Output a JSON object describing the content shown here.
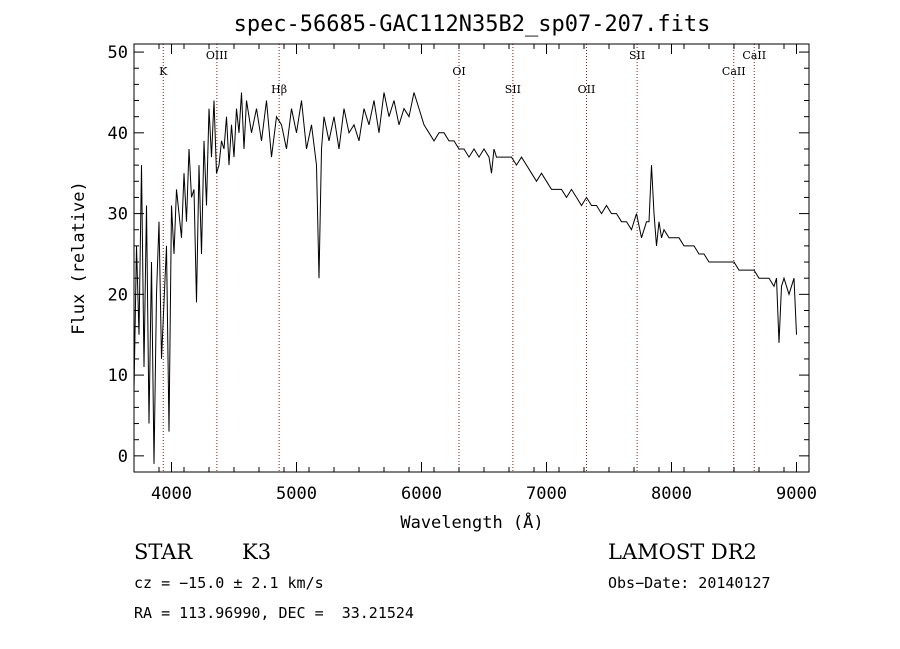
{
  "chart_data": {
    "type": "line",
    "title": "spec-56685-GAC112N35B2_sp07-207.fits",
    "xlabel": "Wavelength (Å)",
    "ylabel": "Flux (relative)",
    "xlim": [
      3700,
      9100
    ],
    "ylim": [
      -2,
      51
    ],
    "xticks": [
      4000,
      5000,
      6000,
      7000,
      8000,
      9000
    ],
    "yticks": [
      0,
      10,
      20,
      30,
      40,
      50
    ],
    "line_color": "#000000",
    "marker_color": "#8b1a1a",
    "spectral_lines": [
      {
        "label": "K",
        "wavelength": 3934
      },
      {
        "label": "OIII",
        "wavelength": 4363
      },
      {
        "label": "Hβ",
        "wavelength": 4861
      },
      {
        "label": "OI",
        "wavelength": 6300
      },
      {
        "label": "SII",
        "wavelength": 6731
      },
      {
        "label": "OII",
        "wavelength": 7320
      },
      {
        "label": "SII",
        "wavelength": 7725
      },
      {
        "label": "CaII",
        "wavelength": 8498
      },
      {
        "label": "CaII",
        "wavelength": 8662
      }
    ],
    "series": [
      {
        "x": [
          3700,
          3720,
          3740,
          3760,
          3780,
          3800,
          3820,
          3840,
          3860,
          3880,
          3900,
          3920,
          3940,
          3960,
          3980,
          4000,
          4020,
          4040,
          4060,
          4080,
          4100,
          4120,
          4140,
          4160,
          4180,
          4200,
          4220,
          4240,
          4260,
          4280,
          4300,
          4320,
          4340,
          4360,
          4380,
          4400,
          4420,
          4440,
          4460,
          4480,
          4500,
          4520,
          4540,
          4560,
          4580,
          4600,
          4640,
          4680,
          4720,
          4760,
          4800,
          4840,
          4880,
          4920,
          4960,
          5000,
          5040,
          5080,
          5120,
          5160,
          5180,
          5200,
          5220,
          5260,
          5300,
          5340,
          5380,
          5420,
          5460,
          5500,
          5540,
          5580,
          5620,
          5660,
          5700,
          5740,
          5780,
          5820,
          5860,
          5900,
          5940,
          5980,
          6020,
          6060,
          6100,
          6140,
          6180,
          6220,
          6260,
          6300,
          6340,
          6380,
          6420,
          6460,
          6500,
          6540,
          6560,
          6580,
          6600,
          6640,
          6680,
          6720,
          6760,
          6800,
          6840,
          6880,
          6920,
          6960,
          7000,
          7040,
          7080,
          7120,
          7160,
          7200,
          7240,
          7280,
          7320,
          7360,
          7400,
          7440,
          7480,
          7520,
          7560,
          7600,
          7640,
          7680,
          7720,
          7760,
          7800,
          7820,
          7840,
          7860,
          7880,
          7900,
          7920,
          7940,
          7980,
          8020,
          8060,
          8100,
          8140,
          8180,
          8220,
          8260,
          8300,
          8340,
          8380,
          8420,
          8460,
          8500,
          8540,
          8580,
          8620,
          8660,
          8700,
          8740,
          8780,
          8820,
          8840,
          8860,
          8880,
          8900,
          8940,
          8980,
          9000
        ],
        "y": [
          8,
          26,
          15,
          36,
          11,
          31,
          4,
          24,
          -1,
          20,
          29,
          12,
          19,
          26,
          3,
          31,
          25,
          33,
          30,
          27,
          35,
          29,
          38,
          32,
          33,
          19,
          36,
          25,
          39,
          31,
          43,
          37,
          44,
          35,
          36,
          39,
          38,
          42,
          36,
          41,
          37,
          43,
          40,
          45,
          38,
          44,
          40,
          43,
          39,
          44,
          37,
          42,
          41,
          38,
          43,
          40,
          44,
          38,
          41,
          36,
          22,
          38,
          42,
          39,
          42,
          38,
          43,
          40,
          41,
          39,
          43,
          41,
          44,
          40,
          45,
          42,
          44,
          41,
          43,
          42,
          45,
          43,
          41,
          40,
          39,
          40,
          40,
          39,
          39,
          38,
          38,
          37,
          38,
          37,
          38,
          37,
          35,
          38,
          37,
          37,
          37,
          37,
          36,
          37,
          36,
          35,
          34,
          35,
          34,
          33,
          33,
          33,
          32,
          33,
          32,
          31,
          32,
          31,
          31,
          30,
          31,
          30,
          30,
          29,
          29,
          28,
          30,
          27,
          29,
          29,
          36,
          30,
          26,
          29,
          27,
          28,
          27,
          27,
          27,
          26,
          26,
          26,
          25,
          25,
          24,
          24,
          24,
          24,
          24,
          24,
          23,
          23,
          23,
          23,
          22,
          22,
          22,
          21,
          22,
          14,
          21,
          22,
          20,
          22,
          15
        ]
      }
    ]
  },
  "info": {
    "class_label": "STAR",
    "subclass": "K3",
    "survey": "LAMOST DR2",
    "cz": "cz = −15.0 ± 2.1 km/s",
    "obs_date": "Obs−Date: 20140127",
    "coords": "RA = 113.96990, DEC =  33.21524"
  }
}
